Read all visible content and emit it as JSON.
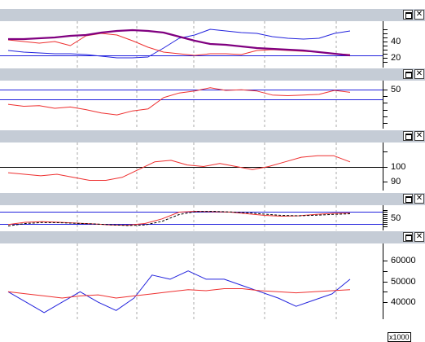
{
  "colors": {
    "blue": "#2222dd",
    "red": "#ee3030",
    "purple": "#800080",
    "black": "#000000",
    "grid": "#a8a8a8",
    "titlebar": "#c5ccd6"
  },
  "window_buttons": {
    "maximize_icon": "maximize-icon",
    "close_glyph": "✕"
  },
  "panes": [
    {
      "id": "price",
      "axis_labels": [
        {
          "text": "40",
          "value": 40
        },
        {
          "text": "20",
          "value": 20
        }
      ],
      "axis_ticks": [
        55,
        50,
        45,
        40,
        35,
        30,
        25,
        20,
        15
      ],
      "yrange": [
        12,
        63
      ],
      "hlines": [
        {
          "value": 23,
          "color": "blue"
        }
      ],
      "series": [
        {
          "color": "blue",
          "width": 1,
          "values": [
            29,
            27,
            26,
            25,
            25,
            24,
            22,
            20,
            20,
            21,
            32,
            44,
            48,
            55,
            53,
            51,
            50,
            46,
            44,
            43,
            44,
            50,
            53
          ]
        },
        {
          "color": "red",
          "width": 1,
          "values": [
            42,
            40,
            38,
            40,
            35,
            47,
            50,
            48,
            41,
            33,
            27,
            25,
            23,
            25,
            25,
            24,
            29,
            30,
            29,
            28,
            27,
            25,
            24
          ]
        },
        {
          "color": "purple",
          "width": 2.2,
          "values": [
            43,
            43,
            44,
            45,
            47,
            48,
            51,
            53,
            54,
            53,
            51,
            46,
            41,
            37,
            36,
            34,
            32,
            31,
            30,
            29,
            27,
            25,
            23
          ]
        }
      ]
    },
    {
      "id": "oscillator",
      "axis_labels": [
        {
          "text": "50",
          "value": 50
        }
      ],
      "axis_ticks": [
        50,
        40,
        30,
        20,
        10,
        0
      ],
      "yrange": [
        -5,
        60
      ],
      "hlines": [
        {
          "value": 50,
          "color": "blue"
        },
        {
          "value": 35,
          "color": "blue"
        }
      ],
      "series": [
        {
          "color": "red",
          "width": 1,
          "values": [
            28,
            25,
            26,
            22,
            24,
            20,
            15,
            12,
            18,
            21,
            38,
            45,
            48,
            53,
            49,
            50,
            48,
            42,
            41,
            42,
            43,
            49,
            46
          ]
        }
      ]
    },
    {
      "id": "index",
      "axis_labels": [
        {
          "text": "100",
          "value": 100
        },
        {
          "text": "90",
          "value": 90
        }
      ],
      "axis_ticks": [
        110,
        100,
        90
      ],
      "yrange": [
        86,
        114
      ],
      "hlines": [
        {
          "value": 100,
          "color": "black"
        }
      ],
      "series": [
        {
          "color": "red",
          "width": 1,
          "values": [
            96,
            95,
            94,
            95,
            93,
            91,
            91,
            93,
            98,
            103,
            104,
            101,
            100,
            102,
            100,
            98,
            100,
            103,
            106,
            107,
            107,
            103
          ]
        }
      ]
    },
    {
      "id": "stochastic",
      "axis_labels": [
        {
          "text": "50",
          "value": 50
        }
      ],
      "axis_ticks": [
        90,
        80,
        70,
        60,
        50,
        40,
        30,
        20,
        10
      ],
      "yrange": [
        0,
        100
      ],
      "hlines": [
        {
          "value": 80,
          "color": "blue"
        },
        {
          "value": 20,
          "color": "blue"
        }
      ],
      "series": [
        {
          "color": "red",
          "width": 1,
          "dash": false,
          "values": [
            17,
            28,
            31,
            28,
            24,
            20,
            15,
            14,
            22,
            45,
            78,
            82,
            80,
            78,
            70,
            62,
            58,
            60,
            67,
            72,
            73
          ]
        },
        {
          "color": "black",
          "width": 1,
          "dash": true,
          "values": [
            10,
            22,
            27,
            26,
            23,
            20,
            16,
            12,
            15,
            33,
            66,
            81,
            82,
            79,
            75,
            68,
            62,
            60,
            63,
            67,
            70
          ]
        }
      ]
    },
    {
      "id": "volume",
      "axis_labels": [
        {
          "text": "60000",
          "value": 60000
        },
        {
          "text": "50000",
          "value": 50000
        },
        {
          "text": "40000",
          "value": 40000
        }
      ],
      "axis_ticks": [
        60000,
        55000,
        50000,
        45000,
        40000
      ],
      "yrange": [
        33000,
        67000
      ],
      "multiplier": "x1000",
      "hlines": [],
      "series": [
        {
          "color": "blue",
          "width": 1,
          "values": [
            45000,
            40000,
            35000,
            40000,
            45000,
            40000,
            36000,
            42000,
            53000,
            51000,
            55000,
            51000,
            51000,
            48000,
            45000,
            42000,
            38000,
            41000,
            44000,
            51000
          ]
        },
        {
          "color": "red",
          "width": 1,
          "values": [
            45000,
            44000,
            43000,
            42000,
            43000,
            43500,
            42000,
            43000,
            44000,
            45000,
            46000,
            45500,
            46500,
            46500,
            45500,
            45000,
            44500,
            45000,
            45500,
            46000
          ]
        }
      ]
    }
  ]
}
